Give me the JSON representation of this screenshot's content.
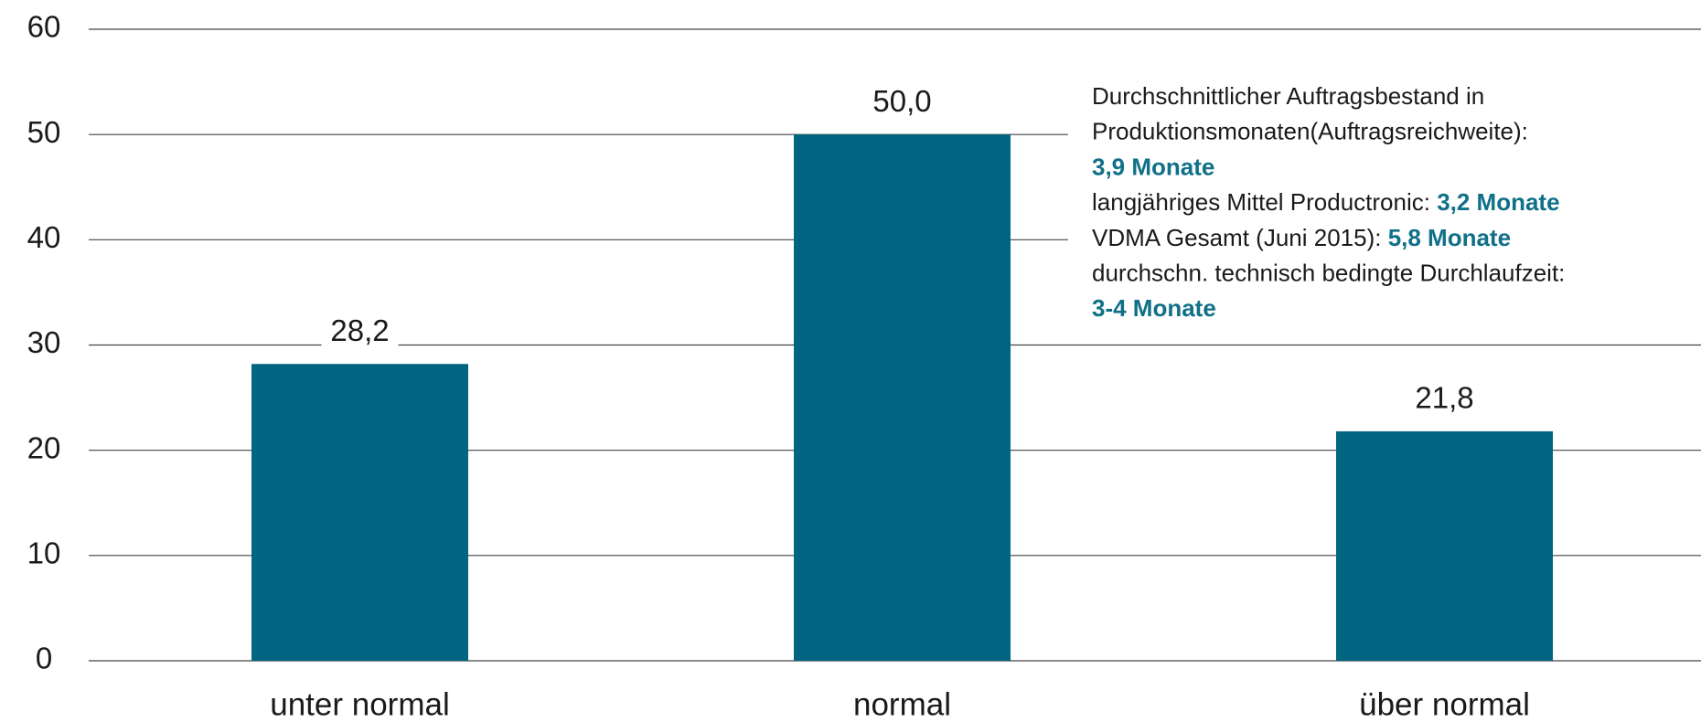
{
  "chart_data": {
    "type": "bar",
    "categories": [
      "unter normal",
      "normal",
      "über normal"
    ],
    "values": [
      28.2,
      50.0,
      21.8
    ],
    "value_labels": [
      "28,2",
      "50,0",
      "21,8"
    ],
    "color": "#006580",
    "ylim": [
      0,
      60
    ],
    "yticks": [
      0,
      10,
      20,
      30,
      40,
      50,
      60
    ],
    "grid": true,
    "annotation": [
      {
        "text": "Durchschnittlicher Auftragsbestand in"
      },
      {
        "text": "Produktionsmonaten(Auftragsreichweite):"
      },
      {
        "highlight": "3,9 Monate"
      },
      {
        "text": "langjähriges Mittel Productronic: ",
        "highlight": "3,2 Monate"
      },
      {
        "text": "VDMA Gesamt (Juni 2015): ",
        "highlight": "5,8 Monate"
      },
      {
        "text": "durchschn. technisch bedingte Durchlaufzeit:"
      },
      {
        "highlight": "3-4 Monate"
      }
    ],
    "highlight_color": "#0f7088"
  }
}
